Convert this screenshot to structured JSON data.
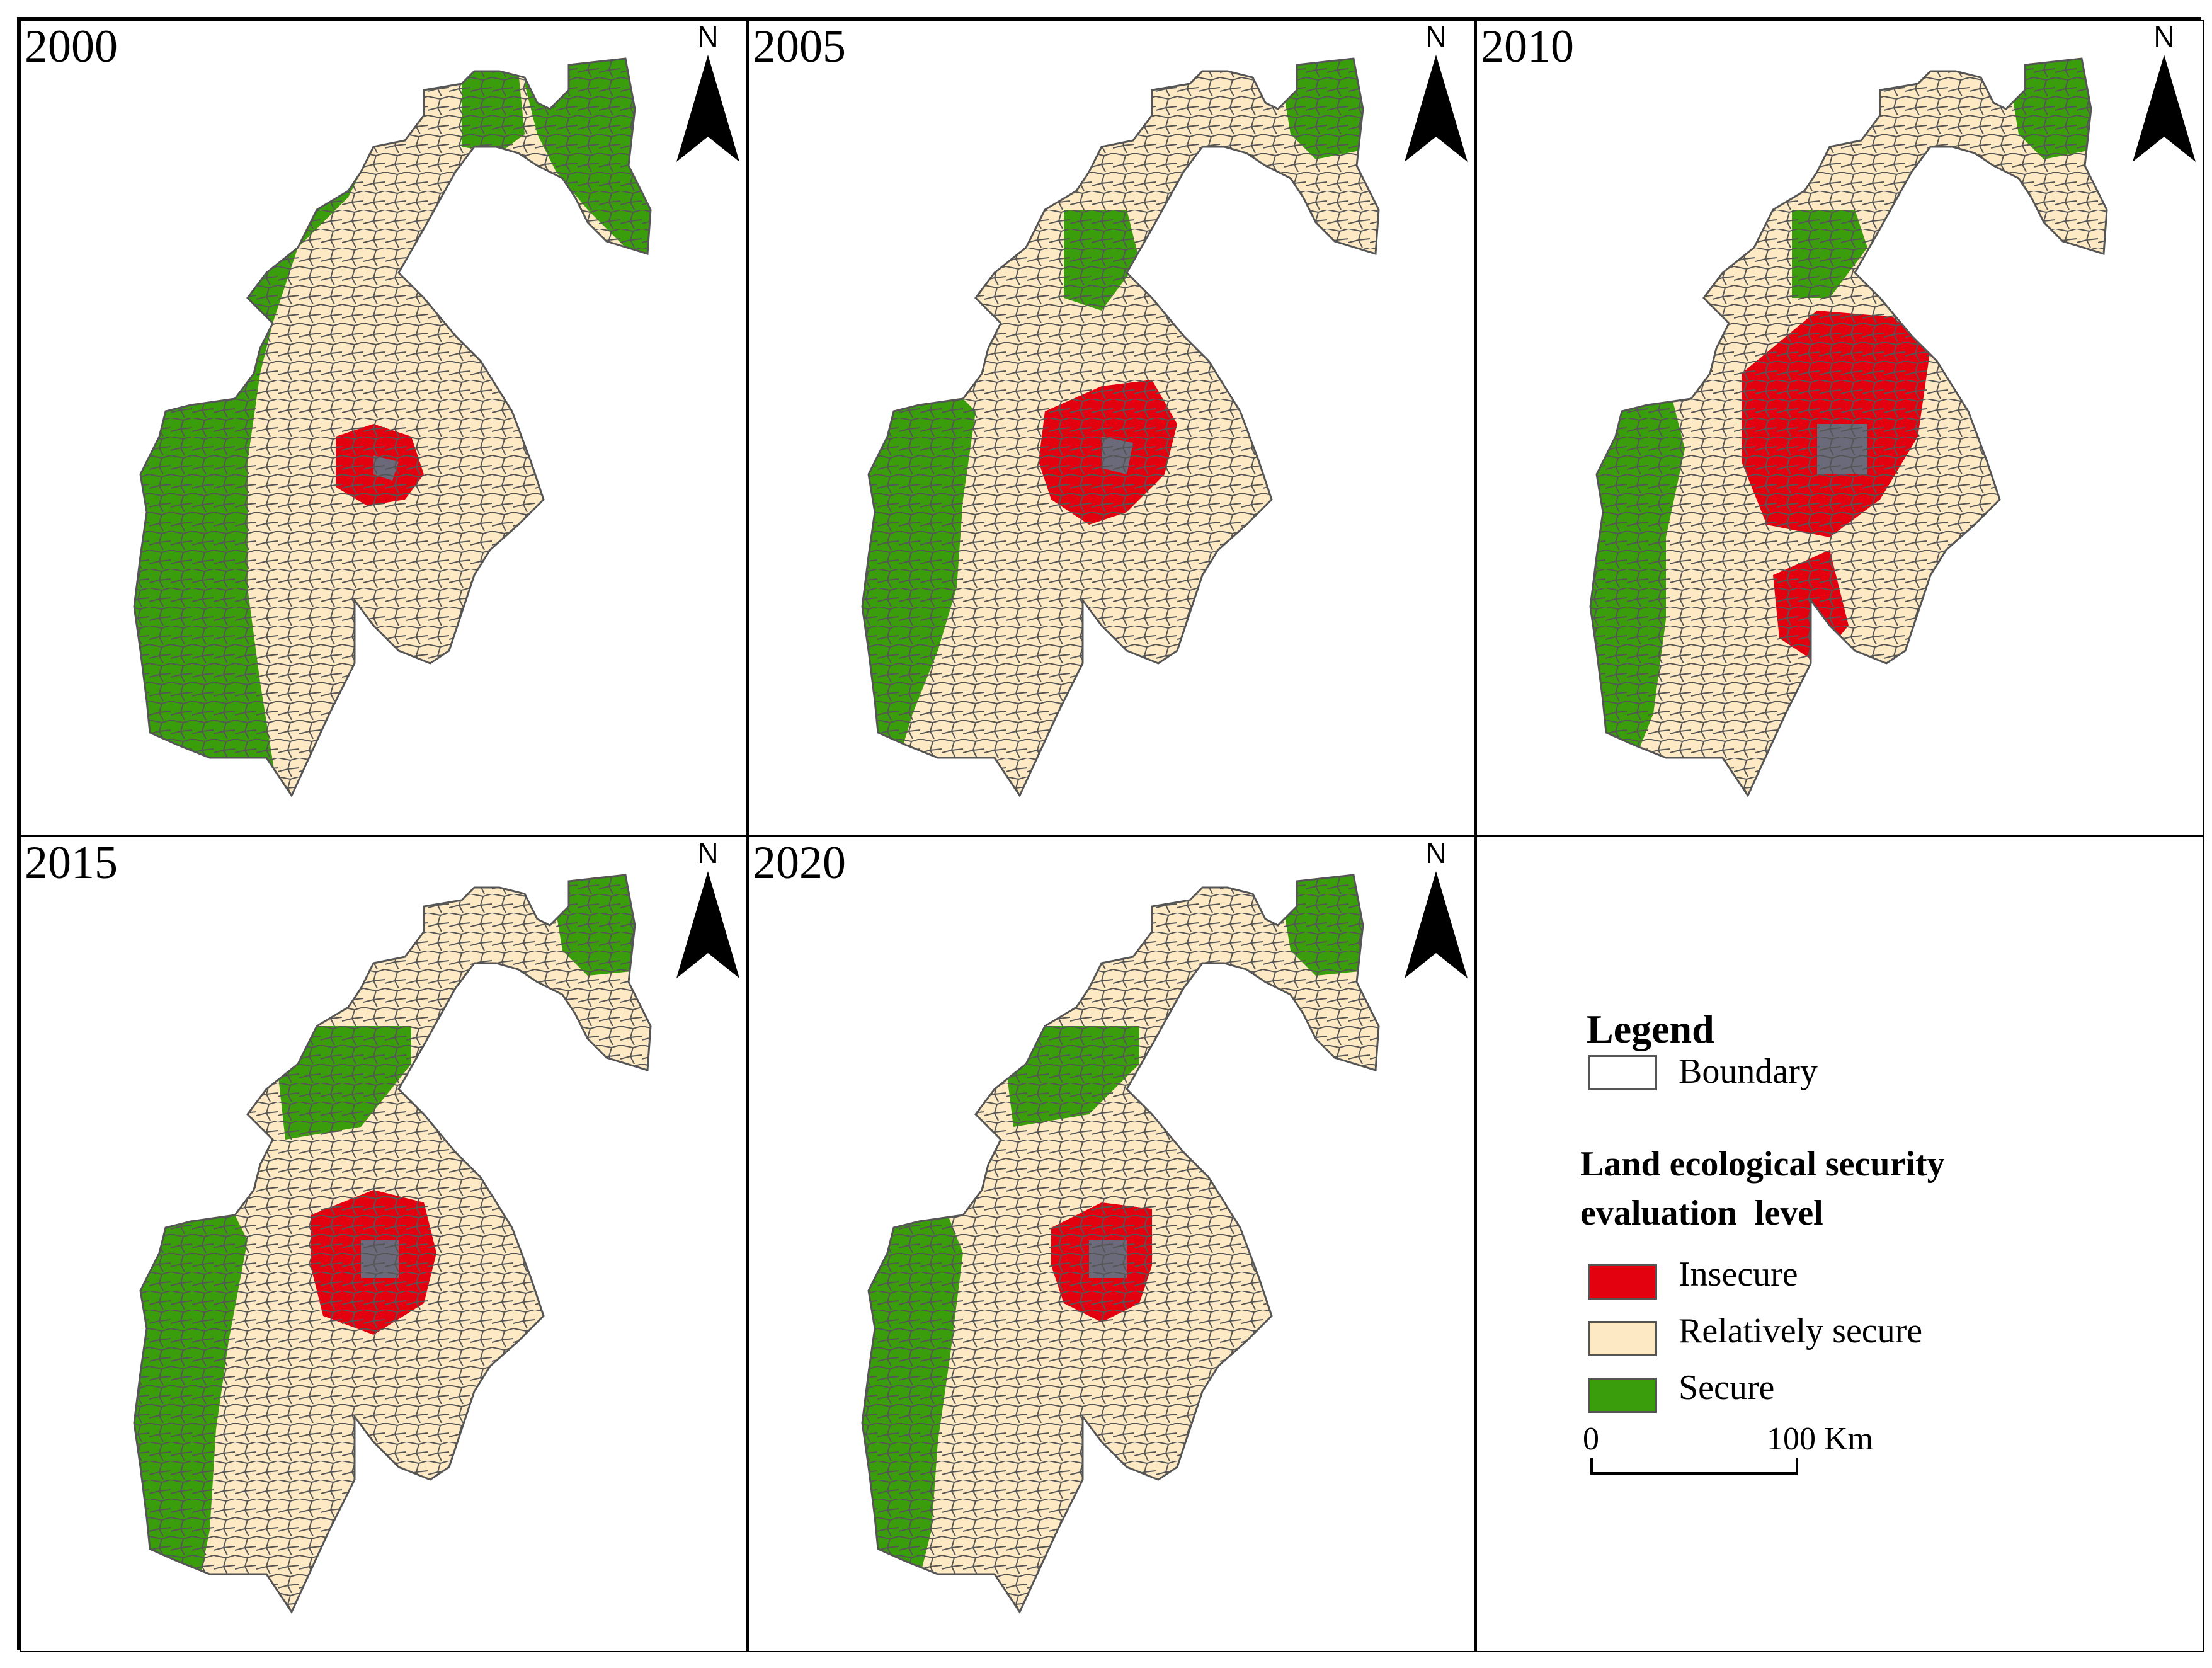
{
  "panels": [
    {
      "year": "2000",
      "north": "N"
    },
    {
      "year": "2005",
      "north": "N"
    },
    {
      "year": "2010",
      "north": "N"
    },
    {
      "year": "2015",
      "north": "N"
    },
    {
      "year": "2020",
      "north": "N"
    }
  ],
  "legend": {
    "title": "Legend",
    "boundary_label": "Boundary",
    "section_title_line1": "Land ecological security",
    "section_title_line2": "evaluation  level",
    "classes": [
      {
        "label": "Insecure",
        "color": "#e3000f"
      },
      {
        "label": "Relatively secure",
        "color": "#fde9c3"
      },
      {
        "label": "Secure",
        "color": "#3a9e0c"
      }
    ],
    "scale_start": "0",
    "scale_end": "100 Km"
  },
  "colors": {
    "insecure": "#e3000f",
    "relatively_secure": "#fde9c3",
    "secure": "#3a9e0c",
    "boundary": "#555555"
  },
  "icons": {
    "north_arrow": "north-arrow-icon"
  }
}
